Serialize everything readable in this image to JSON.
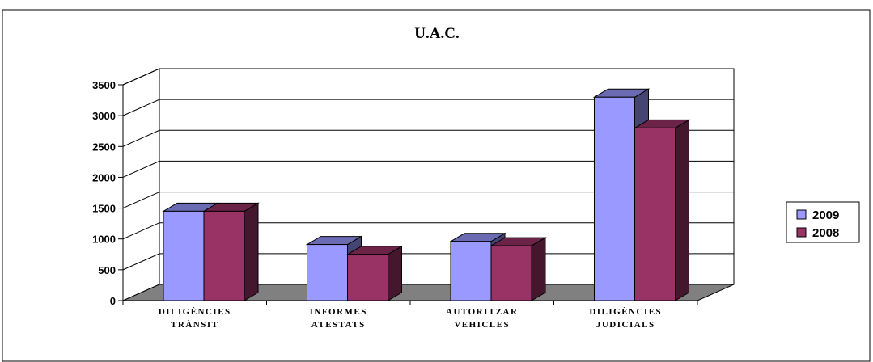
{
  "chart_data": {
    "type": "bar",
    "title": "U.A.C.",
    "categories": [
      [
        "DILIGÈNCIES",
        "TRÀNSIT"
      ],
      [
        "INFORMES",
        "ATESTATS"
      ],
      [
        "AUTORITZAR",
        "VEHICLES"
      ],
      [
        "DILIGÈNCIES",
        "JUDICIALS"
      ]
    ],
    "series": [
      {
        "name": "2009",
        "values": [
          1450,
          910,
          960,
          3300
        ],
        "color": "#9999ff"
      },
      {
        "name": "2008",
        "values": [
          1450,
          750,
          890,
          2800
        ],
        "color": "#993366"
      }
    ],
    "ylim": [
      0,
      3500
    ],
    "yticks": [
      "0",
      "500",
      "1000",
      "1500",
      "2000",
      "2500",
      "3000",
      "3500"
    ],
    "grid": true,
    "legend_position": "right",
    "style": "3d-clustered-column",
    "floor_color": "#808080"
  }
}
